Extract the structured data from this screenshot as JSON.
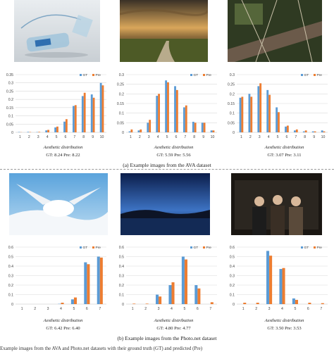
{
  "section_a": {
    "caption_label": "(a)",
    "caption_text": "Example images from the AVA dataset"
  },
  "section_b": {
    "caption_label": "(b)",
    "caption_text": "Example images from the Photo.net dataset"
  },
  "footer_text": "Example images from the AVA and Photo.net datasets with their ground truth (GT) and predicted (Pre)",
  "colors": {
    "gt": "#5b9bd5",
    "pre": "#ed7d31",
    "grid": "#d9d9d9",
    "axis": "#bfbfbf"
  },
  "chart_data": [
    {
      "type": "bar",
      "title": "",
      "xlabel": "Aesthetic distribution",
      "ylabel": "",
      "categories": [
        "1",
        "2",
        "3",
        "4",
        "5",
        "6",
        "7",
        "8",
        "9",
        "10"
      ],
      "ylim": [
        0,
        0.35
      ],
      "yticks": [
        "0",
        "0.05",
        "0.1",
        "0.15",
        "0.2",
        "0.25",
        "0.3",
        "0.35"
      ],
      "grid": true,
      "legend": "top-right",
      "series": [
        {
          "name": "GT",
          "values": [
            0.002,
            0.003,
            0.002,
            0.012,
            0.03,
            0.065,
            0.16,
            0.22,
            0.23,
            0.3
          ]
        },
        {
          "name": "Pre",
          "values": [
            0.001,
            0.002,
            0.003,
            0.015,
            0.035,
            0.08,
            0.165,
            0.24,
            0.21,
            0.285
          ]
        }
      ],
      "score_text": "GT: 8.24 Pre: 8.22"
    },
    {
      "type": "bar",
      "title": "",
      "xlabel": "Aesthetic distribution",
      "ylabel": "",
      "categories": [
        "1",
        "2",
        "3",
        "4",
        "5",
        "6",
        "7",
        "8",
        "9",
        "10"
      ],
      "ylim": [
        0,
        0.3
      ],
      "yticks": [
        "0",
        "0.05",
        "0.1",
        "0.15",
        "0.2",
        "0.25",
        "0.3"
      ],
      "grid": true,
      "legend": "top-right",
      "series": [
        {
          "name": "GT",
          "values": [
            0.005,
            0.01,
            0.05,
            0.19,
            0.27,
            0.24,
            0.13,
            0.055,
            0.05,
            0.01
          ]
        },
        {
          "name": "Pre",
          "values": [
            0.015,
            0.015,
            0.065,
            0.2,
            0.26,
            0.22,
            0.14,
            0.05,
            0.05,
            0.01
          ]
        }
      ],
      "score_text": "GT: 5.59 Pre: 5.56"
    },
    {
      "type": "bar",
      "title": "",
      "xlabel": "Aesthetic distribution",
      "ylabel": "",
      "categories": [
        "1",
        "2",
        "3",
        "4",
        "5",
        "6",
        "7",
        "8",
        "9",
        "10"
      ],
      "ylim": [
        0,
        0.3
      ],
      "yticks": [
        "0",
        "0.05",
        "0.1",
        "0.15",
        "0.2",
        "0.25",
        "0.3"
      ],
      "grid": true,
      "legend": "top-right",
      "series": [
        {
          "name": "GT",
          "values": [
            0.18,
            0.2,
            0.24,
            0.22,
            0.13,
            0.03,
            0.01,
            0.005,
            0.005,
            0.01
          ]
        },
        {
          "name": "Pre",
          "values": [
            0.185,
            0.185,
            0.255,
            0.195,
            0.105,
            0.035,
            0.015,
            0.01,
            0.005,
            0.005
          ]
        }
      ],
      "score_text": "GT: 3.07 Pre: 3.11"
    },
    {
      "type": "bar",
      "title": "",
      "xlabel": "Aesthetic distribution",
      "ylabel": "",
      "categories": [
        "1",
        "2",
        "3",
        "4",
        "5",
        "6",
        "7"
      ],
      "ylim": [
        0,
        0.6
      ],
      "yticks": [
        "0",
        "0.1",
        "0.2",
        "0.3",
        "0.4",
        "0.5",
        "0.6"
      ],
      "grid": true,
      "legend": "top-right",
      "series": [
        {
          "name": "GT",
          "values": [
            0.0,
            0.0,
            0.0,
            0.003,
            0.05,
            0.44,
            0.5
          ]
        },
        {
          "name": "Pre",
          "values": [
            0.0,
            0.0,
            0.0,
            0.015,
            0.07,
            0.42,
            0.49
          ]
        }
      ],
      "score_text": "GT: 6.42 Pre: 6.40"
    },
    {
      "type": "bar",
      "title": "",
      "xlabel": "Aesthetic distribution",
      "ylabel": "",
      "categories": [
        "1",
        "2",
        "3",
        "4",
        "5",
        "6",
        "7"
      ],
      "ylim": [
        0,
        0.6
      ],
      "yticks": [
        "0",
        "0.1",
        "0.2",
        "0.3",
        "0.4",
        "0.5",
        "0.6"
      ],
      "grid": true,
      "legend": "top-right",
      "series": [
        {
          "name": "GT",
          "values": [
            0.0,
            0.0,
            0.1,
            0.2,
            0.5,
            0.2,
            0.0
          ]
        },
        {
          "name": "Pre",
          "values": [
            0.005,
            0.005,
            0.08,
            0.23,
            0.47,
            0.165,
            0.02
          ]
        }
      ],
      "score_text": "GT: 4.80 Pre: 4.77"
    },
    {
      "type": "bar",
      "title": "",
      "xlabel": "Aesthetic distribution",
      "ylabel": "",
      "categories": [
        "1",
        "2",
        "3",
        "4",
        "5",
        "6",
        "7"
      ],
      "ylim": [
        0,
        0.6
      ],
      "yticks": [
        "0",
        "0.1",
        "0.2",
        "0.3",
        "0.4",
        "0.5",
        "0.6"
      ],
      "grid": true,
      "legend": "top-right",
      "series": [
        {
          "name": "GT",
          "values": [
            0.0,
            0.0,
            0.56,
            0.37,
            0.06,
            0.0,
            0.0
          ]
        },
        {
          "name": "Pre",
          "values": [
            0.015,
            0.015,
            0.51,
            0.38,
            0.045,
            0.015,
            0.01
          ]
        }
      ],
      "score_text": "GT: 3.50 Pre: 3.53"
    }
  ]
}
